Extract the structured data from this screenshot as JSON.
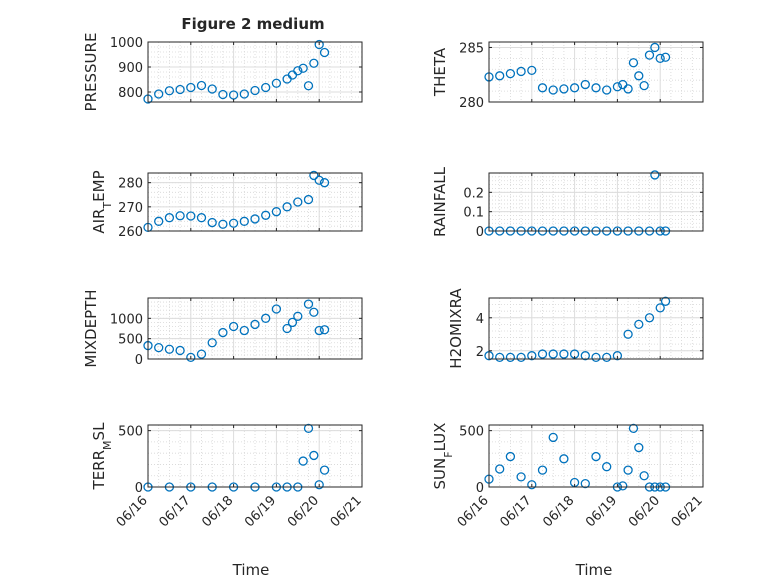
{
  "figure": {
    "title": "Figure 2 medium",
    "xlabel": "Time",
    "x_tick_labels": [
      "06/16",
      "06/17",
      "06/18",
      "06/19",
      "06/20",
      "06/21"
    ],
    "marker": "open-circle",
    "series_color": "#0072BD",
    "grid": "major-and-minor"
  },
  "chart_data": [
    {
      "type": "scatter",
      "title": "Figure 2 medium",
      "ylabel": "PRESSURE",
      "xlim": [
        "06/16",
        "06/21"
      ],
      "ylim": [
        760,
        1000
      ],
      "y_ticks": [
        800,
        900,
        1000
      ],
      "y_tick_labels": [
        "800",
        "900",
        "1000"
      ],
      "x": [
        "06/16",
        "06/16 06h",
        "06/16 12h",
        "06/16 18h",
        "06/17",
        "06/17 06h",
        "06/17 12h",
        "06/17 18h",
        "06/18",
        "06/18 06h",
        "06/18 12h",
        "06/18 18h",
        "06/19",
        "06/19 06h",
        "06/19 09h",
        "06/19 12h",
        "06/19 15h",
        "06/19 18h",
        "06/19 21h",
        "06/20",
        "06/20 03h"
      ],
      "y": [
        772,
        792,
        805,
        810,
        818,
        826,
        812,
        790,
        788,
        792,
        806,
        818,
        835,
        852,
        868,
        885,
        895,
        825,
        915,
        990,
        958
      ]
    },
    {
      "type": "scatter",
      "ylabel": "THETA",
      "xlim": [
        "06/16",
        "06/21"
      ],
      "ylim": [
        280,
        285.5
      ],
      "y_ticks": [
        280,
        285
      ],
      "y_tick_labels": [
        "280",
        "285"
      ],
      "x": [
        "06/16",
        "06/16 06h",
        "06/16 12h",
        "06/16 18h",
        "06/17",
        "06/17 06h",
        "06/17 12h",
        "06/17 18h",
        "06/18",
        "06/18 06h",
        "06/18 12h",
        "06/18 18h",
        "06/19",
        "06/19 03h",
        "06/19 06h",
        "06/19 09h",
        "06/19 12h",
        "06/19 15h",
        "06/19 18h",
        "06/19 21h",
        "06/20",
        "06/20 03h"
      ],
      "y": [
        282.3,
        282.4,
        282.6,
        282.8,
        282.9,
        281.3,
        281.1,
        281.2,
        281.3,
        281.6,
        281.3,
        281.1,
        281.4,
        281.6,
        281.2,
        283.6,
        282.4,
        281.5,
        284.3,
        285.0,
        284.0,
        284.1
      ]
    },
    {
      "type": "scatter",
      "ylabel": "AIR_TEMP",
      "xlim": [
        "06/16",
        "06/21"
      ],
      "ylim": [
        260,
        284
      ],
      "y_ticks": [
        260,
        270,
        280
      ],
      "y_tick_labels": [
        "260",
        "270",
        "280"
      ],
      "x": [
        "06/16",
        "06/16 06h",
        "06/16 12h",
        "06/16 18h",
        "06/17",
        "06/17 06h",
        "06/17 12h",
        "06/17 18h",
        "06/18",
        "06/18 06h",
        "06/18 12h",
        "06/18 18h",
        "06/19",
        "06/19 06h",
        "06/19 12h",
        "06/19 18h",
        "06/19 21h",
        "06/20",
        "06/20 03h"
      ],
      "y": [
        261.5,
        264,
        265.5,
        266.3,
        266.2,
        265.5,
        263.5,
        262.8,
        263.2,
        264,
        265,
        266.5,
        268,
        270,
        272,
        273,
        283,
        281,
        280
      ]
    },
    {
      "type": "scatter",
      "ylabel": "RAINFALL",
      "xlim": [
        "06/16",
        "06/21"
      ],
      "ylim": [
        0,
        0.3
      ],
      "y_ticks": [
        0,
        0.1,
        0.2
      ],
      "y_tick_labels": [
        "0",
        "0.1",
        "0.2"
      ],
      "x": [
        "06/16",
        "06/16 06h",
        "06/16 12h",
        "06/16 18h",
        "06/17",
        "06/17 06h",
        "06/17 12h",
        "06/17 18h",
        "06/18",
        "06/18 06h",
        "06/18 12h",
        "06/18 18h",
        "06/19",
        "06/19 06h",
        "06/19 12h",
        "06/19 18h",
        "06/19 21h",
        "06/20",
        "06/20 03h"
      ],
      "y": [
        0,
        0,
        0,
        0,
        0,
        0,
        0,
        0,
        0,
        0,
        0,
        0,
        0,
        0,
        0,
        0,
        0.29,
        0,
        0
      ]
    },
    {
      "type": "scatter",
      "ylabel": "MIXDEPTH",
      "xlim": [
        "06/16",
        "06/21"
      ],
      "ylim": [
        0,
        1500
      ],
      "y_ticks": [
        0,
        500,
        1000
      ],
      "y_tick_labels": [
        "0",
        "500",
        "1000"
      ],
      "x": [
        "06/16",
        "06/16 06h",
        "06/16 12h",
        "06/16 18h",
        "06/17",
        "06/17 06h",
        "06/17 12h",
        "06/17 18h",
        "06/18",
        "06/18 06h",
        "06/18 12h",
        "06/18 18h",
        "06/19",
        "06/19 06h",
        "06/19 09h",
        "06/19 12h",
        "06/19 18h",
        "06/19 21h",
        "06/20",
        "06/20 03h"
      ],
      "y": [
        330,
        280,
        240,
        210,
        40,
        120,
        400,
        650,
        800,
        700,
        850,
        1000,
        1230,
        750,
        900,
        1050,
        1350,
        1150,
        700,
        720
      ]
    },
    {
      "type": "scatter",
      "ylabel": "H2OMIXRA",
      "xlim": [
        "06/16",
        "06/21"
      ],
      "ylim": [
        1.5,
        5.2
      ],
      "y_ticks": [
        2,
        4
      ],
      "y_tick_labels": [
        "2",
        "4"
      ],
      "x": [
        "06/16",
        "06/16 06h",
        "06/16 12h",
        "06/16 18h",
        "06/17",
        "06/17 06h",
        "06/17 12h",
        "06/17 18h",
        "06/18",
        "06/18 06h",
        "06/18 12h",
        "06/18 18h",
        "06/19",
        "06/19 06h",
        "06/19 12h",
        "06/19 18h",
        "06/20",
        "06/20 03h"
      ],
      "y": [
        1.7,
        1.6,
        1.6,
        1.6,
        1.7,
        1.8,
        1.8,
        1.8,
        1.8,
        1.7,
        1.6,
        1.6,
        1.7,
        3.0,
        3.6,
        4.0,
        4.6,
        5.0
      ]
    },
    {
      "type": "scatter",
      "ylabel": "TERR_MSL",
      "xlim": [
        "06/16",
        "06/21"
      ],
      "ylim": [
        0,
        550
      ],
      "y_ticks": [
        0,
        500
      ],
      "y_tick_labels": [
        "0",
        "500"
      ],
      "x": [
        "06/16",
        "06/16 12h",
        "06/17",
        "06/17 12h",
        "06/18",
        "06/18 12h",
        "06/19",
        "06/19 06h",
        "06/19 12h",
        "06/19 15h",
        "06/19 18h",
        "06/19 21h",
        "06/20",
        "06/20 03h"
      ],
      "y": [
        0,
        0,
        0,
        0,
        0,
        0,
        0,
        0,
        0,
        230,
        520,
        280,
        20,
        150
      ]
    },
    {
      "type": "scatter",
      "ylabel": "SUN_FLUX",
      "xlim": [
        "06/16",
        "06/21"
      ],
      "ylim": [
        0,
        550
      ],
      "y_ticks": [
        0,
        500
      ],
      "y_tick_labels": [
        "0",
        "500"
      ],
      "x": [
        "06/16",
        "06/16 06h",
        "06/16 12h",
        "06/16 18h",
        "06/17",
        "06/17 06h",
        "06/17 12h",
        "06/17 18h",
        "06/18",
        "06/18 06h",
        "06/18 12h",
        "06/18 18h",
        "06/19",
        "06/19 03h",
        "06/19 06h",
        "06/19 09h",
        "06/19 12h",
        "06/19 15h",
        "06/19 18h",
        "06/19 21h",
        "06/20",
        "06/20 03h"
      ],
      "y": [
        70,
        160,
        270,
        90,
        20,
        150,
        440,
        250,
        40,
        30,
        270,
        180,
        0,
        10,
        150,
        520,
        350,
        100,
        0,
        0,
        0,
        0
      ]
    }
  ]
}
